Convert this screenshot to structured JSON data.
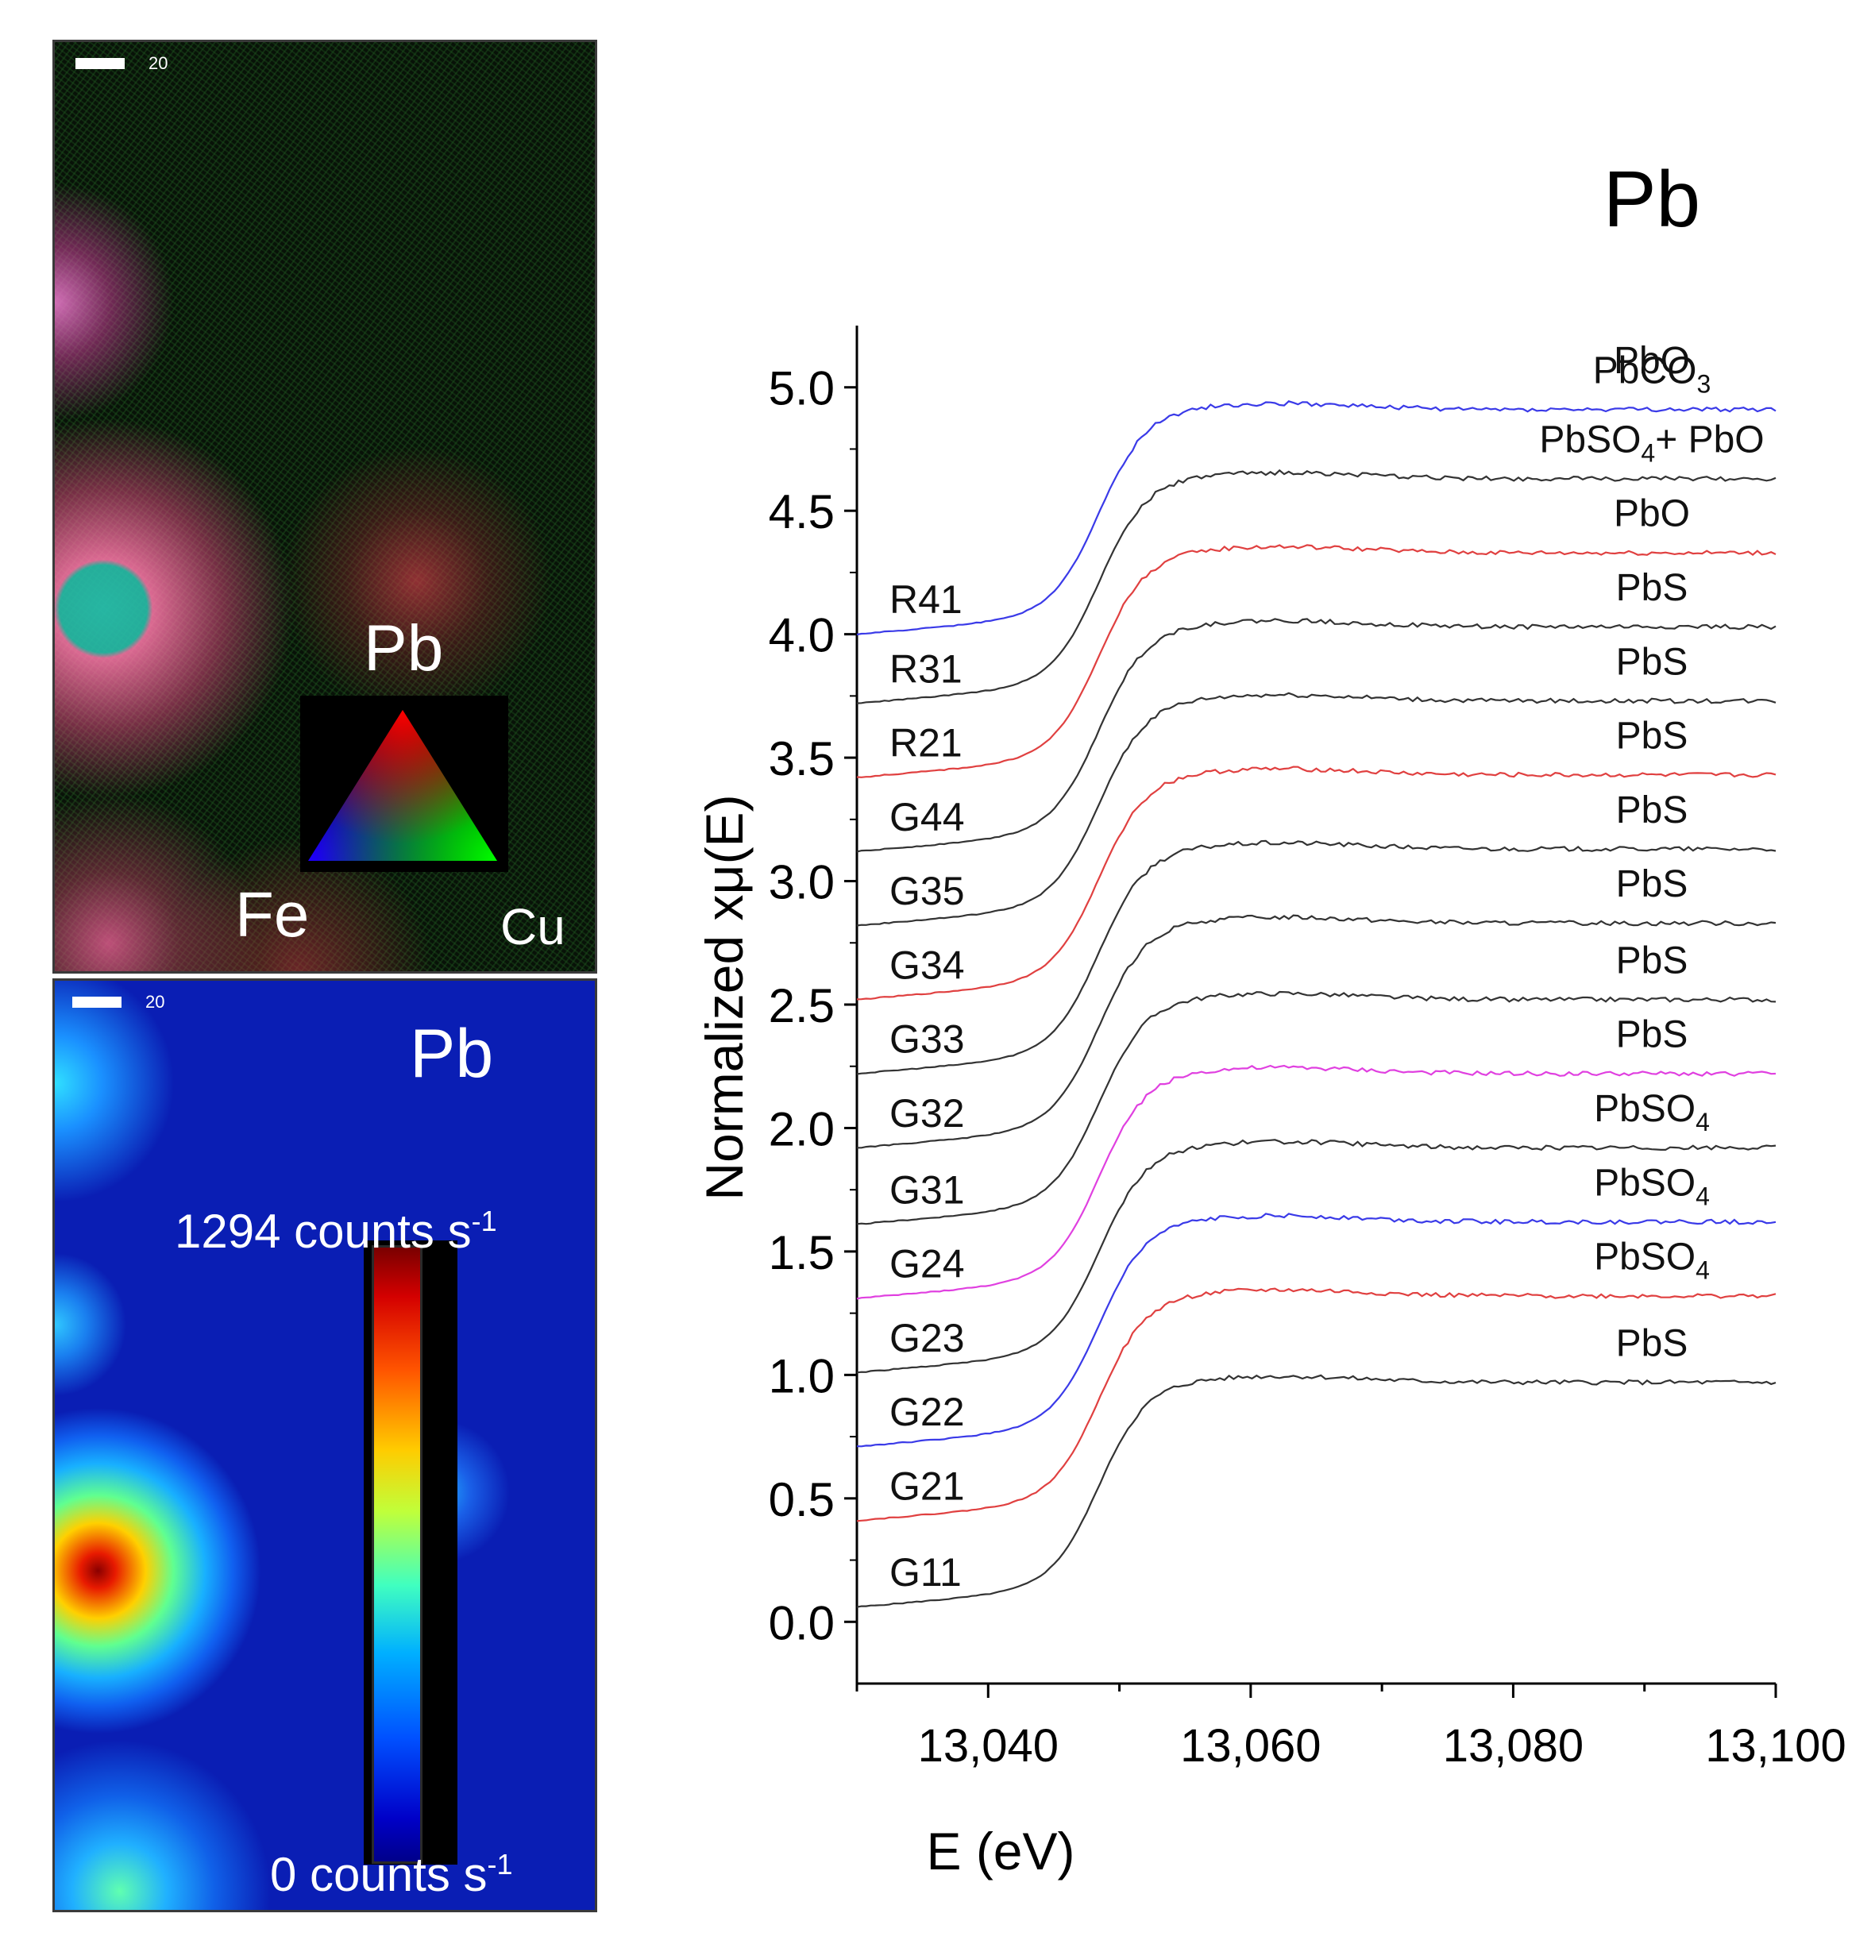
{
  "rgb_map": {
    "scale_value": "20",
    "labels": [
      "Pb",
      "Fe",
      "Cu"
    ],
    "colors": {
      "Pb": "#ff0000",
      "Cu": "#00ff00",
      "Fe": "#0000ff"
    }
  },
  "pb_map": {
    "scale_value": "20",
    "title": "Pb",
    "max_value": "1294",
    "min_value": "0",
    "unit_main": "counts s",
    "unit_exp": "-1"
  },
  "chart_data": {
    "type": "line",
    "title": "Pb",
    "xlabel": "E (eV)",
    "ylabel": "Normalized xμ(E)",
    "xlim": [
      13030,
      13100
    ],
    "ylim": [
      -0.25,
      5.25
    ],
    "xticks": [
      13040,
      13060,
      13080,
      13100
    ],
    "xtick_labels": [
      "13,040",
      "13,060",
      "13,080",
      "13,100"
    ],
    "yticks": [
      0.0,
      0.5,
      1.0,
      1.5,
      2.0,
      2.5,
      3.0,
      3.5,
      4.0,
      4.5,
      5.0
    ],
    "ytick_labels": [
      "0.0",
      "0.5",
      "1.0",
      "1.5",
      "2.0",
      "2.5",
      "3.0",
      "3.5",
      "4.0",
      "4.5",
      "5.0"
    ],
    "series": [
      {
        "name": "G11",
        "reference": "PbS",
        "offset": 0.0,
        "color": "#333333"
      },
      {
        "name": "G21",
        "reference": "PbSO4",
        "offset": 0.35,
        "color": "#e04040"
      },
      {
        "name": "G22",
        "reference": "PbSO4",
        "offset": 0.65,
        "color": "#3a3ae8"
      },
      {
        "name": "G23",
        "reference": "PbSO4",
        "offset": 0.95,
        "color": "#333333"
      },
      {
        "name": "G24",
        "reference": "PbS",
        "offset": 1.25,
        "color": "#e040e0"
      },
      {
        "name": "G31",
        "reference": "PbS",
        "offset": 1.55,
        "color": "#333333"
      },
      {
        "name": "G32",
        "reference": "PbS",
        "offset": 1.86,
        "color": "#333333"
      },
      {
        "name": "G33",
        "reference": "PbS",
        "offset": 2.16,
        "color": "#333333"
      },
      {
        "name": "G34",
        "reference": "PbS",
        "offset": 2.46,
        "color": "#e04040"
      },
      {
        "name": "G35",
        "reference": "PbS",
        "offset": 2.76,
        "color": "#333333"
      },
      {
        "name": "G44",
        "reference": "PbS",
        "offset": 3.06,
        "color": "#333333"
      },
      {
        "name": "R21",
        "reference": "PbO",
        "offset": 3.36,
        "color": "#e04040"
      },
      {
        "name": "R31",
        "reference": "PbSO4+ PbO",
        "offset": 3.66,
        "color": "#333333"
      },
      {
        "name": "R41",
        "reference": "PbCO3",
        "offset": 3.94,
        "color": "#3a3ae8"
      }
    ],
    "top_reference": "PbO"
  }
}
